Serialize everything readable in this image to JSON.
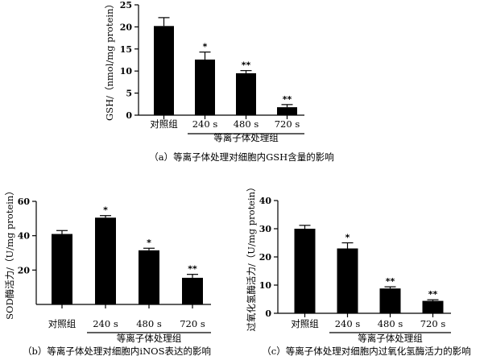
{
  "chart_data": [
    {
      "type": "bar",
      "categories": [
        "对照组",
        "240 s",
        "480 s",
        "720 s"
      ],
      "values": [
        20.2,
        12.6,
        9.5,
        1.8
      ],
      "errors": [
        1.9,
        1.7,
        0.6,
        0.6
      ],
      "significance": [
        "",
        "*",
        "**",
        "**"
      ],
      "ylabel": "GSH/（nmol/mg protein）",
      "ylim": [
        0,
        25
      ],
      "yticks": [
        0,
        5,
        10,
        15,
        20,
        25
      ],
      "group_label": "等离子体处理组",
      "caption": "（a）等离子体处理对细胞内GSH含量的影响"
    },
    {
      "type": "bar",
      "categories": [
        "对照组",
        "240 s",
        "480 s",
        "720 s"
      ],
      "values": [
        41,
        50.5,
        31.5,
        15.5
      ],
      "errors": [
        2.0,
        1.2,
        1.2,
        2.0
      ],
      "significance": [
        "",
        "*",
        "*",
        "**"
      ],
      "ylabel": "SOD酶活力/（U/mg protein）",
      "ylim": [
        0,
        60
      ],
      "yticks": [
        20,
        40,
        60
      ],
      "group_label": "等离子体处理组",
      "caption": "（b）等离子体处理对细胞内iNOS表达的影响"
    },
    {
      "type": "bar",
      "categories": [
        "对照组",
        "240 s",
        "480 s",
        "720 s"
      ],
      "values": [
        30,
        23,
        8.8,
        4.4
      ],
      "errors": [
        1.2,
        2.0,
        0.6,
        0.4
      ],
      "significance": [
        "",
        "*",
        "**",
        "**"
      ],
      "ylabel": "过氧化氢酶活力/（U/mg protein）",
      "ylim": [
        0,
        40
      ],
      "yticks": [
        0,
        10,
        20,
        30,
        40
      ],
      "group_label": "等离子体处理组",
      "caption": "（c）等离子体处理对细胞内过氧化氢酶活力的影响"
    }
  ]
}
